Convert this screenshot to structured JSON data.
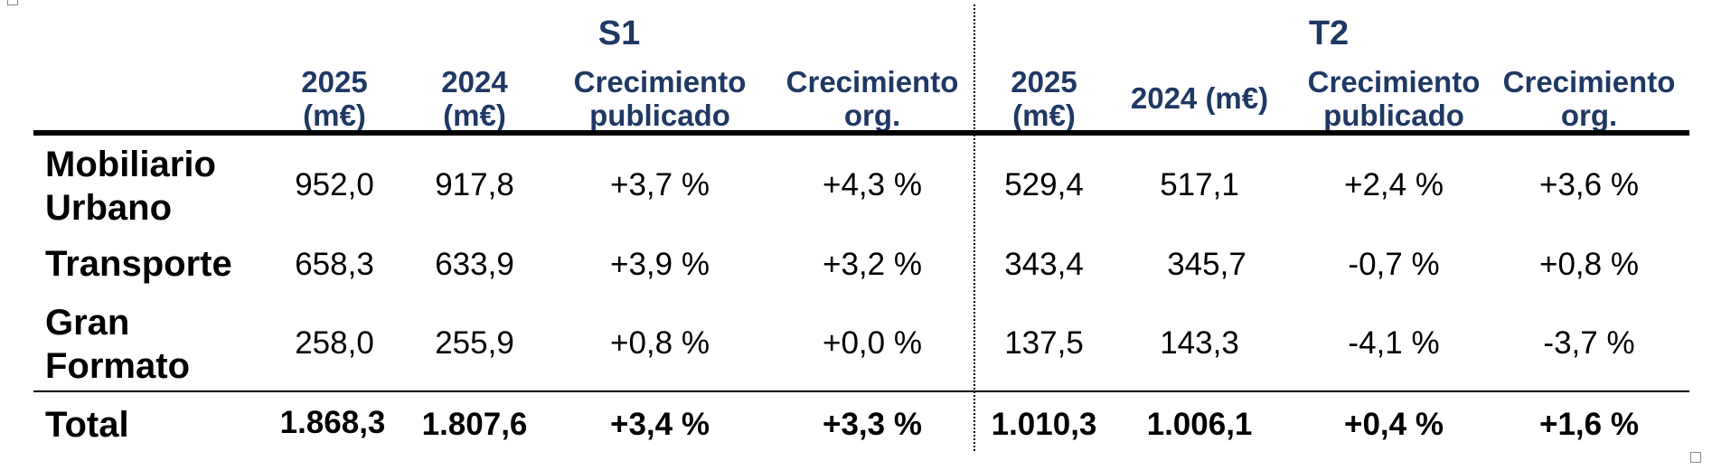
{
  "groups": [
    "S1",
    "T2"
  ],
  "column_headers": {
    "s1": [
      {
        "line1": "2025",
        "line2": "(m€)"
      },
      {
        "line1": "2024",
        "line2": "(m€)"
      },
      {
        "line1": "Crecimiento",
        "line2": "publicado"
      },
      {
        "line1": "Crecimiento",
        "line2": "org."
      }
    ],
    "t2": [
      {
        "line1": "2025",
        "line2": "(m€)"
      },
      {
        "line1": "2024 (m€)",
        "line2": ""
      },
      {
        "line1": "Crecimiento",
        "line2": "publicado"
      },
      {
        "line1": "Crecimiento",
        "line2": "org."
      }
    ]
  },
  "rows": [
    {
      "label_line1": "Mobiliario",
      "label_line2": "Urbano",
      "values": [
        "952,0",
        "917,8",
        "+3,7 %",
        "+4,3 %",
        "529,4",
        "517,1",
        "+2,4 %",
        "+3,6 %"
      ]
    },
    {
      "label_line1": "Transporte",
      "label_line2": "",
      "values": [
        "658,3",
        "633,9",
        "+3,9 %",
        "+3,2 %",
        "343,4",
        "345,7",
        "-0,7 %",
        "+0,8 %"
      ]
    },
    {
      "label_line1": "Gran",
      "label_line2": "Formato",
      "values": [
        "258,0",
        "255,9",
        "+0,8 %",
        "+0,0 %",
        "137,5",
        "143,3",
        "-4,1 %",
        "-3,7 %"
      ]
    }
  ],
  "total": {
    "label": "Total",
    "values": [
      "1.868,3",
      "1.807,6",
      "+3,4 %",
      "+3,3 %",
      "1.010,3",
      "1.006,1",
      "+0,4 %",
      "+1,6 %"
    ]
  }
}
